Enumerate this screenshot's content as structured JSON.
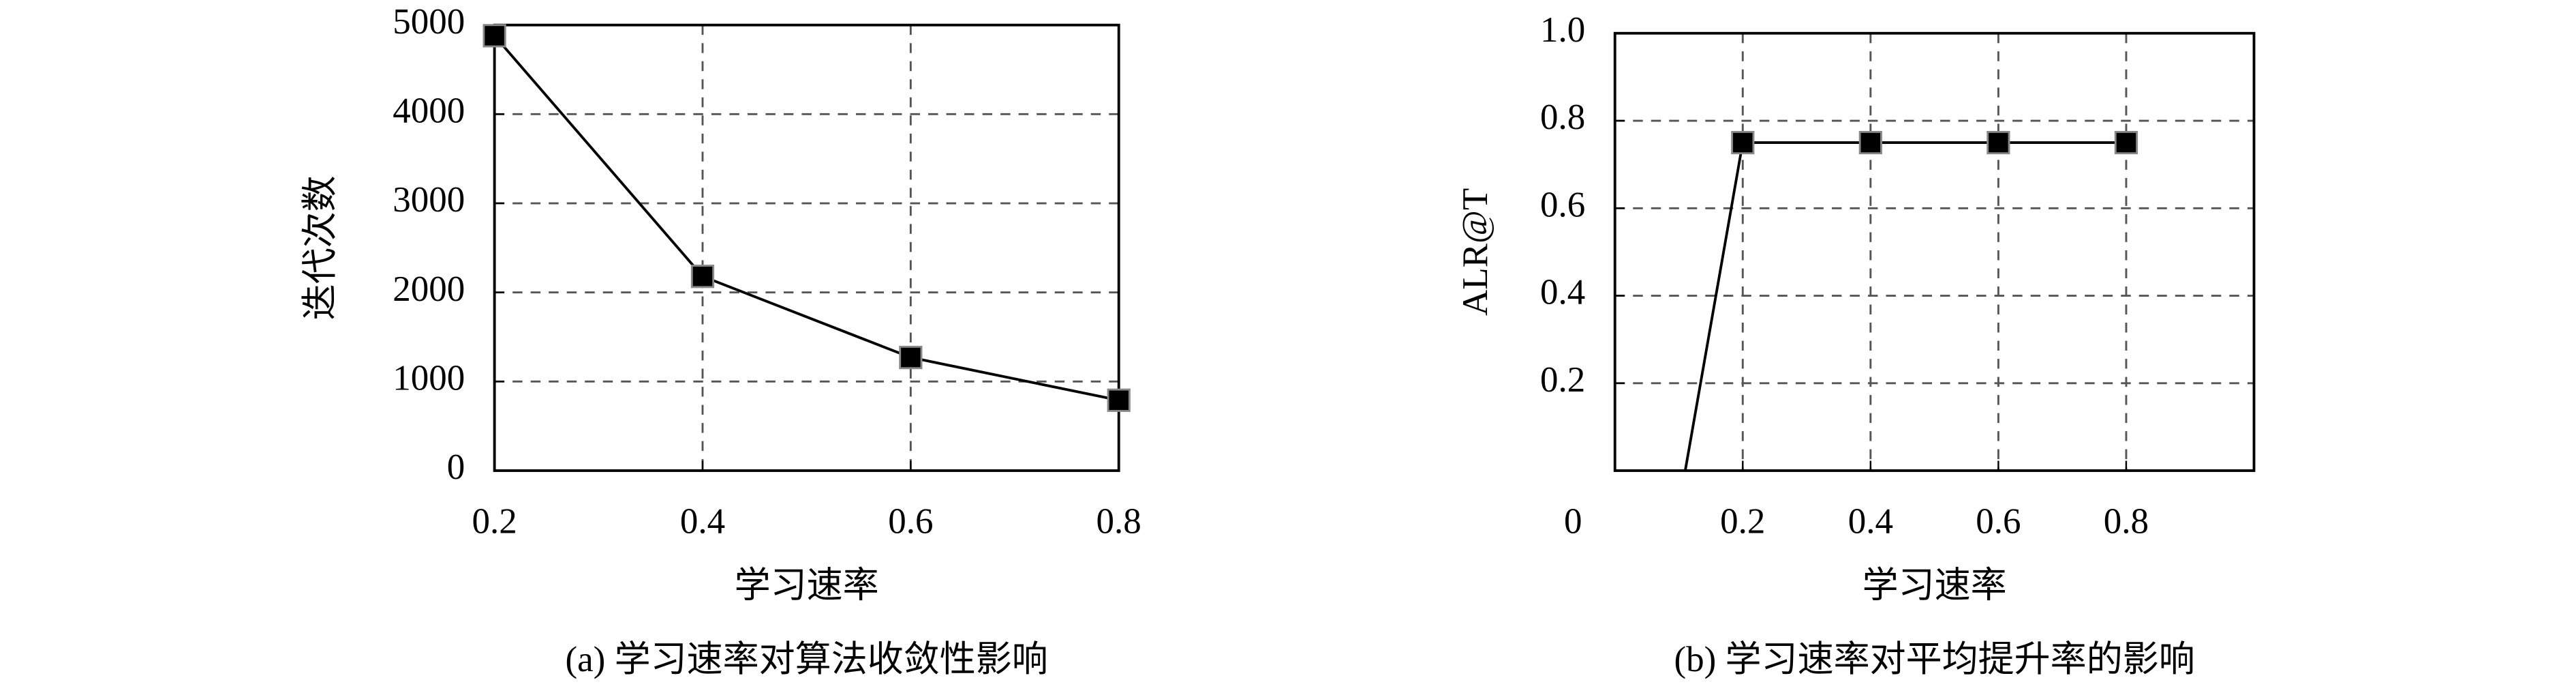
{
  "chart_data": [
    {
      "type": "line",
      "title": "(a) 学习速率对算法收敛性影响",
      "x_label": "学习速率",
      "y_label": "迭代次数",
      "grid": true,
      "xlim": [
        0.2,
        0.8
      ],
      "ylim": [
        0,
        5000
      ],
      "xticks": [
        0.2,
        0.4,
        0.6,
        0.8
      ],
      "yticks": [
        0,
        1000,
        2000,
        3000,
        4000,
        5000
      ],
      "series": [
        {
          "color": "#000000",
          "x": [
            0.2,
            0.4,
            0.6,
            0.8
          ],
          "values": [
            4880,
            2180,
            1270,
            790
          ],
          "markers": [
            true,
            true,
            true,
            true
          ]
        }
      ]
    },
    {
      "type": "line",
      "title": "(b) 学习速率对平均提升率的影响",
      "x_label": "学习速率",
      "y_label": "ALR@T",
      "grid": true,
      "xlim": [
        0,
        1
      ],
      "ylim": [
        0,
        1
      ],
      "xticks": [
        0.2,
        0.4,
        0.6,
        0.8
      ],
      "yticks": [
        0,
        0.2,
        0.4,
        0.6,
        0.8,
        {
          "value": 1,
          "label": "1.0"
        }
      ],
      "series": [
        {
          "color": "#000000",
          "x": [
            0.11,
            0.2,
            0.4,
            0.6,
            0.8
          ],
          "values": [
            0,
            0.75,
            0.75,
            0.75,
            0.75
          ],
          "markers": [
            false,
            true,
            true,
            true,
            true
          ]
        }
      ]
    }
  ]
}
